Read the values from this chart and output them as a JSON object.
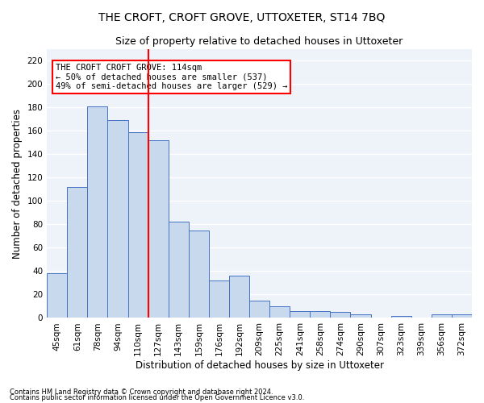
{
  "title": "THE CROFT, CROFT GROVE, UTTOXETER, ST14 7BQ",
  "subtitle": "Size of property relative to detached houses in Uttoxeter",
  "xlabel": "Distribution of detached houses by size in Uttoxeter",
  "ylabel": "Number of detached properties",
  "footnote1": "Contains HM Land Registry data © Crown copyright and database right 2024.",
  "footnote2": "Contains public sector information licensed under the Open Government Licence v3.0.",
  "categories": [
    "45sqm",
    "61sqm",
    "78sqm",
    "94sqm",
    "110sqm",
    "127sqm",
    "143sqm",
    "159sqm",
    "176sqm",
    "192sqm",
    "209sqm",
    "225sqm",
    "241sqm",
    "258sqm",
    "274sqm",
    "290sqm",
    "307sqm",
    "323sqm",
    "339sqm",
    "356sqm",
    "372sqm"
  ],
  "values": [
    38,
    112,
    181,
    169,
    159,
    152,
    82,
    75,
    32,
    36,
    15,
    10,
    6,
    6,
    5,
    3,
    0,
    2,
    0,
    3,
    3
  ],
  "bar_color": "#c9d9ed",
  "bar_edge_color": "#4472c4",
  "vline_color": "red",
  "annotation_text": "THE CROFT CROFT GROVE: 114sqm\n← 50% of detached houses are smaller (537)\n49% of semi-detached houses are larger (529) →",
  "annotation_box_color": "white",
  "annotation_box_edge": "red",
  "ylim": [
    0,
    230
  ],
  "yticks": [
    0,
    20,
    40,
    60,
    80,
    100,
    120,
    140,
    160,
    180,
    200,
    220
  ],
  "bg_color": "#eef2f9",
  "grid_color": "white",
  "title_fontsize": 10,
  "subtitle_fontsize": 9,
  "label_fontsize": 8.5,
  "tick_fontsize": 7.5,
  "annotation_fontsize": 7.5,
  "footnote_fontsize": 6
}
